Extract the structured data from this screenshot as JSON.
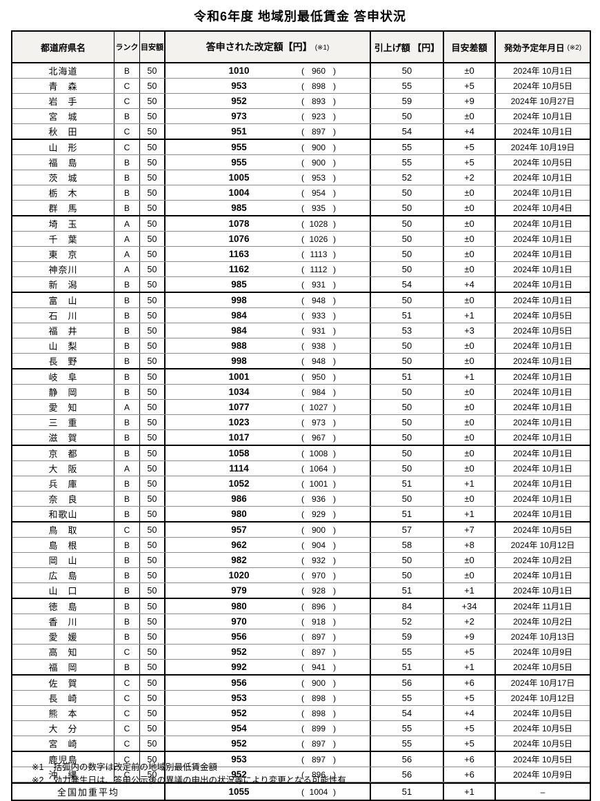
{
  "title": "令和6年度  地域別最低賃金  答申状況",
  "glyphs": {
    "open_paren": "(",
    "close_paren": ")"
  },
  "table": {
    "headers": {
      "prefecture": "都道府県名",
      "rank": "ランク",
      "guide": "目安額",
      "revised": "答申された改定額【円】",
      "revised_note": "(※1)",
      "raise": "引上げ額 【円】",
      "diff": "目安差額",
      "date": "発効予定年月日",
      "date_note": "(※2)"
    },
    "rows": [
      {
        "name": "北海道",
        "rank": "B",
        "guide": 50,
        "revised": 1010,
        "pre": 960,
        "raise": 50,
        "diff": "±0",
        "date": "2024年 10月1日"
      },
      {
        "name": "青　森",
        "rank": "C",
        "guide": 50,
        "revised": 953,
        "pre": 898,
        "raise": 55,
        "diff": "+5",
        "date": "2024年 10月5日"
      },
      {
        "name": "岩　手",
        "rank": "C",
        "guide": 50,
        "revised": 952,
        "pre": 893,
        "raise": 59,
        "diff": "+9",
        "date": "2024年 10月27日"
      },
      {
        "name": "宮　城",
        "rank": "B",
        "guide": 50,
        "revised": 973,
        "pre": 923,
        "raise": 50,
        "diff": "±0",
        "date": "2024年 10月1日"
      },
      {
        "name": "秋　田",
        "rank": "C",
        "guide": 50,
        "revised": 951,
        "pre": 897,
        "raise": 54,
        "diff": "+4",
        "date": "2024年 10月1日"
      },
      {
        "name": "山　形",
        "rank": "C",
        "guide": 50,
        "revised": 955,
        "pre": 900,
        "raise": 55,
        "diff": "+5",
        "date": "2024年 10月19日"
      },
      {
        "name": "福　島",
        "rank": "B",
        "guide": 50,
        "revised": 955,
        "pre": 900,
        "raise": 55,
        "diff": "+5",
        "date": "2024年 10月5日"
      },
      {
        "name": "茨　城",
        "rank": "B",
        "guide": 50,
        "revised": 1005,
        "pre": 953,
        "raise": 52,
        "diff": "+2",
        "date": "2024年 10月1日"
      },
      {
        "name": "栃　木",
        "rank": "B",
        "guide": 50,
        "revised": 1004,
        "pre": 954,
        "raise": 50,
        "diff": "±0",
        "date": "2024年 10月1日"
      },
      {
        "name": "群　馬",
        "rank": "B",
        "guide": 50,
        "revised": 985,
        "pre": 935,
        "raise": 50,
        "diff": "±0",
        "date": "2024年 10月4日"
      },
      {
        "name": "埼　玉",
        "rank": "A",
        "guide": 50,
        "revised": 1078,
        "pre": 1028,
        "raise": 50,
        "diff": "±0",
        "date": "2024年 10月1日"
      },
      {
        "name": "千　葉",
        "rank": "A",
        "guide": 50,
        "revised": 1076,
        "pre": 1026,
        "raise": 50,
        "diff": "±0",
        "date": "2024年 10月1日"
      },
      {
        "name": "東　京",
        "rank": "A",
        "guide": 50,
        "revised": 1163,
        "pre": 1113,
        "raise": 50,
        "diff": "±0",
        "date": "2024年 10月1日"
      },
      {
        "name": "神奈川",
        "rank": "A",
        "guide": 50,
        "revised": 1162,
        "pre": 1112,
        "raise": 50,
        "diff": "±0",
        "date": "2024年 10月1日"
      },
      {
        "name": "新　潟",
        "rank": "B",
        "guide": 50,
        "revised": 985,
        "pre": 931,
        "raise": 54,
        "diff": "+4",
        "date": "2024年 10月1日"
      },
      {
        "name": "富　山",
        "rank": "B",
        "guide": 50,
        "revised": 998,
        "pre": 948,
        "raise": 50,
        "diff": "±0",
        "date": "2024年 10月1日"
      },
      {
        "name": "石　川",
        "rank": "B",
        "guide": 50,
        "revised": 984,
        "pre": 933,
        "raise": 51,
        "diff": "+1",
        "date": "2024年 10月5日"
      },
      {
        "name": "福　井",
        "rank": "B",
        "guide": 50,
        "revised": 984,
        "pre": 931,
        "raise": 53,
        "diff": "+3",
        "date": "2024年 10月5日"
      },
      {
        "name": "山　梨",
        "rank": "B",
        "guide": 50,
        "revised": 988,
        "pre": 938,
        "raise": 50,
        "diff": "±0",
        "date": "2024年 10月1日"
      },
      {
        "name": "長　野",
        "rank": "B",
        "guide": 50,
        "revised": 998,
        "pre": 948,
        "raise": 50,
        "diff": "±0",
        "date": "2024年 10月1日"
      },
      {
        "name": "岐　阜",
        "rank": "B",
        "guide": 50,
        "revised": 1001,
        "pre": 950,
        "raise": 51,
        "diff": "+1",
        "date": "2024年 10月1日"
      },
      {
        "name": "静　岡",
        "rank": "B",
        "guide": 50,
        "revised": 1034,
        "pre": 984,
        "raise": 50,
        "diff": "±0",
        "date": "2024年 10月1日"
      },
      {
        "name": "愛　知",
        "rank": "A",
        "guide": 50,
        "revised": 1077,
        "pre": 1027,
        "raise": 50,
        "diff": "±0",
        "date": "2024年 10月1日"
      },
      {
        "name": "三　重",
        "rank": "B",
        "guide": 50,
        "revised": 1023,
        "pre": 973,
        "raise": 50,
        "diff": "±0",
        "date": "2024年 10月1日"
      },
      {
        "name": "滋　賀",
        "rank": "B",
        "guide": 50,
        "revised": 1017,
        "pre": 967,
        "raise": 50,
        "diff": "±0",
        "date": "2024年 10月1日"
      },
      {
        "name": "京　都",
        "rank": "B",
        "guide": 50,
        "revised": 1058,
        "pre": 1008,
        "raise": 50,
        "diff": "±0",
        "date": "2024年 10月1日"
      },
      {
        "name": "大　阪",
        "rank": "A",
        "guide": 50,
        "revised": 1114,
        "pre": 1064,
        "raise": 50,
        "diff": "±0",
        "date": "2024年 10月1日"
      },
      {
        "name": "兵　庫",
        "rank": "B",
        "guide": 50,
        "revised": 1052,
        "pre": 1001,
        "raise": 51,
        "diff": "+1",
        "date": "2024年 10月1日"
      },
      {
        "name": "奈　良",
        "rank": "B",
        "guide": 50,
        "revised": 986,
        "pre": 936,
        "raise": 50,
        "diff": "±0",
        "date": "2024年 10月1日"
      },
      {
        "name": "和歌山",
        "rank": "B",
        "guide": 50,
        "revised": 980,
        "pre": 929,
        "raise": 51,
        "diff": "+1",
        "date": "2024年 10月1日"
      },
      {
        "name": "鳥　取",
        "rank": "C",
        "guide": 50,
        "revised": 957,
        "pre": 900,
        "raise": 57,
        "diff": "+7",
        "date": "2024年 10月5日"
      },
      {
        "name": "島　根",
        "rank": "B",
        "guide": 50,
        "revised": 962,
        "pre": 904,
        "raise": 58,
        "diff": "+8",
        "date": "2024年 10月12日"
      },
      {
        "name": "岡　山",
        "rank": "B",
        "guide": 50,
        "revised": 982,
        "pre": 932,
        "raise": 50,
        "diff": "±0",
        "date": "2024年 10月2日"
      },
      {
        "name": "広　島",
        "rank": "B",
        "guide": 50,
        "revised": 1020,
        "pre": 970,
        "raise": 50,
        "diff": "±0",
        "date": "2024年 10月1日"
      },
      {
        "name": "山　口",
        "rank": "B",
        "guide": 50,
        "revised": 979,
        "pre": 928,
        "raise": 51,
        "diff": "+1",
        "date": "2024年 10月1日"
      },
      {
        "name": "徳　島",
        "rank": "B",
        "guide": 50,
        "revised": 980,
        "pre": 896,
        "raise": 84,
        "diff": "+34",
        "date": "2024年 11月1日"
      },
      {
        "name": "香　川",
        "rank": "B",
        "guide": 50,
        "revised": 970,
        "pre": 918,
        "raise": 52,
        "diff": "+2",
        "date": "2024年 10月2日"
      },
      {
        "name": "愛　媛",
        "rank": "B",
        "guide": 50,
        "revised": 956,
        "pre": 897,
        "raise": 59,
        "diff": "+9",
        "date": "2024年 10月13日"
      },
      {
        "name": "高　知",
        "rank": "C",
        "guide": 50,
        "revised": 952,
        "pre": 897,
        "raise": 55,
        "diff": "+5",
        "date": "2024年 10月9日"
      },
      {
        "name": "福　岡",
        "rank": "B",
        "guide": 50,
        "revised": 992,
        "pre": 941,
        "raise": 51,
        "diff": "+1",
        "date": "2024年 10月5日"
      },
      {
        "name": "佐　賀",
        "rank": "C",
        "guide": 50,
        "revised": 956,
        "pre": 900,
        "raise": 56,
        "diff": "+6",
        "date": "2024年 10月17日"
      },
      {
        "name": "長　崎",
        "rank": "C",
        "guide": 50,
        "revised": 953,
        "pre": 898,
        "raise": 55,
        "diff": "+5",
        "date": "2024年 10月12日"
      },
      {
        "name": "熊　本",
        "rank": "C",
        "guide": 50,
        "revised": 952,
        "pre": 898,
        "raise": 54,
        "diff": "+4",
        "date": "2024年 10月5日"
      },
      {
        "name": "大　分",
        "rank": "C",
        "guide": 50,
        "revised": 954,
        "pre": 899,
        "raise": 55,
        "diff": "+5",
        "date": "2024年 10月5日"
      },
      {
        "name": "宮　崎",
        "rank": "C",
        "guide": 50,
        "revised": 952,
        "pre": 897,
        "raise": 55,
        "diff": "+5",
        "date": "2024年 10月5日"
      },
      {
        "name": "鹿児島",
        "rank": "C",
        "guide": 50,
        "revised": 953,
        "pre": 897,
        "raise": 56,
        "diff": "+6",
        "date": "2024年 10月5日"
      },
      {
        "name": "沖　縄",
        "rank": "C",
        "guide": 50,
        "revised": 952,
        "pre": 896,
        "raise": 56,
        "diff": "+6",
        "date": "2024年 10月9日"
      }
    ],
    "average": {
      "label": "全国加重平均",
      "revised": 1055,
      "pre": 1004,
      "raise": 51,
      "diff": "+1",
      "date": "–"
    }
  },
  "footnotes": [
    {
      "marker": "※1",
      "text": "括弧内の数字は改定前の地域別最低賃金額"
    },
    {
      "marker": "※2",
      "text": "効力発生日は、答申公示後の異議の申出の状況等により変更となる可能性有"
    }
  ]
}
